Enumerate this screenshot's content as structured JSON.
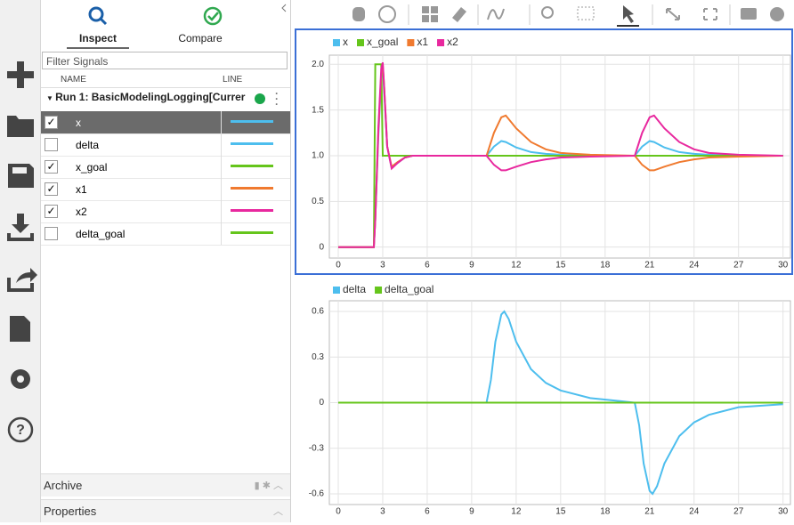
{
  "tabs": [
    "Inspect",
    "Compare"
  ],
  "filter_placeholder": "Filter Signals",
  "columns": [
    "NAME",
    "LINE"
  ],
  "run": "Run 1: BasicModelingLogging[Currer",
  "signals": [
    {
      "name": "x",
      "checked": true,
      "color": "#4dbeee"
    },
    {
      "name": "delta",
      "checked": false,
      "color": "#4dbeee"
    },
    {
      "name": "x_goal",
      "checked": true,
      "color": "#65c51b"
    },
    {
      "name": "x1",
      "checked": true,
      "color": "#f07a2f"
    },
    {
      "name": "x2",
      "checked": true,
      "color": "#e8289e"
    },
    {
      "name": "delta_goal",
      "checked": false,
      "color": "#65c51b"
    }
  ],
  "archive": "Archive",
  "properties": "Properties",
  "chart_data": [
    {
      "type": "line",
      "x": [
        0,
        2.4,
        2.5,
        2.7,
        2.9,
        3.0,
        3.1,
        3.3,
        3.6,
        4.0,
        4.5,
        5,
        7,
        10,
        10.5,
        11,
        11.3,
        12,
        13,
        14,
        15,
        17,
        20,
        20.5,
        21,
        21.3,
        22,
        23,
        24,
        25,
        27,
        30
      ],
      "series": [
        {
          "name": "x",
          "color": "#4dbeee",
          "values": [
            0,
            0,
            0.3,
            1.2,
            1.85,
            1.95,
            1.7,
            1.1,
            0.87,
            0.92,
            0.98,
            1.0,
            1.0,
            1.0,
            1.1,
            1.16,
            1.15,
            1.09,
            1.04,
            1.02,
            1.01,
            1.0,
            1.0,
            1.1,
            1.16,
            1.15,
            1.09,
            1.04,
            1.02,
            1.01,
            1.0,
            1.0
          ]
        },
        {
          "name": "x_goal",
          "color": "#65c51b",
          "values": [
            0,
            0,
            2,
            2,
            2,
            1,
            1,
            1,
            1,
            1,
            1,
            1,
            1,
            1,
            1,
            1,
            1,
            1,
            1,
            1,
            1,
            1,
            1,
            1,
            1,
            1,
            1,
            1,
            1,
            1,
            1,
            1
          ]
        },
        {
          "name": "x1",
          "color": "#f07a2f",
          "values": [
            0,
            0,
            0.3,
            1.25,
            1.9,
            2.0,
            1.75,
            1.1,
            0.88,
            0.93,
            0.98,
            1.0,
            1.0,
            1.0,
            1.25,
            1.42,
            1.44,
            1.3,
            1.15,
            1.07,
            1.03,
            1.01,
            1.0,
            0.9,
            0.84,
            0.84,
            0.88,
            0.93,
            0.96,
            0.98,
            0.99,
            1.0
          ]
        },
        {
          "name": "x2",
          "color": "#e8289e",
          "values": [
            0,
            0,
            0.3,
            1.3,
            1.95,
            2.02,
            1.75,
            1.1,
            0.86,
            0.92,
            0.98,
            1.0,
            1.0,
            1.0,
            0.9,
            0.84,
            0.84,
            0.88,
            0.93,
            0.96,
            0.98,
            0.99,
            1.0,
            1.25,
            1.42,
            1.44,
            1.3,
            1.15,
            1.07,
            1.03,
            1.01,
            1.0
          ]
        }
      ],
      "xlim": [
        -0.6,
        30.5
      ],
      "ylim": [
        -0.12,
        2.1
      ],
      "xticks": [
        0,
        3,
        6,
        9,
        12,
        15,
        18,
        21,
        24,
        27,
        30
      ],
      "yticks": [
        0,
        0.5,
        {
          "value": 1,
          "label": "1.0"
        },
        1.5,
        {
          "value": 2,
          "label": "2.0"
        }
      ],
      "grid": true
    },
    {
      "type": "line",
      "x": [
        0,
        10,
        10.3,
        10.6,
        11,
        11.2,
        11.5,
        12,
        13,
        14,
        15,
        17,
        19,
        20,
        20.3,
        20.6,
        21,
        21.2,
        21.5,
        22,
        23,
        24,
        25,
        27,
        30
      ],
      "series": [
        {
          "name": "delta",
          "color": "#4dbeee",
          "values": [
            0,
            0,
            0.15,
            0.4,
            0.58,
            0.6,
            0.55,
            0.4,
            0.22,
            0.13,
            0.08,
            0.03,
            0.01,
            0,
            -0.15,
            -0.4,
            -0.58,
            -0.6,
            -0.55,
            -0.4,
            -0.22,
            -0.13,
            -0.08,
            -0.03,
            -0.01
          ]
        },
        {
          "name": "delta_goal",
          "color": "#65c51b",
          "values": [
            0,
            0,
            0,
            0,
            0,
            0,
            0,
            0,
            0,
            0,
            0,
            0,
            0,
            0,
            0,
            0,
            0,
            0,
            0,
            0,
            0,
            0,
            0,
            0,
            0
          ]
        }
      ],
      "xlim": [
        -0.6,
        30.5
      ],
      "ylim": [
        -0.67,
        0.67
      ],
      "xticks": [
        0,
        3,
        6,
        9,
        12,
        15,
        18,
        21,
        24,
        27,
        30
      ],
      "yticks": [
        0.6,
        0.3,
        0,
        -0.3,
        -0.6
      ],
      "grid": true
    }
  ]
}
